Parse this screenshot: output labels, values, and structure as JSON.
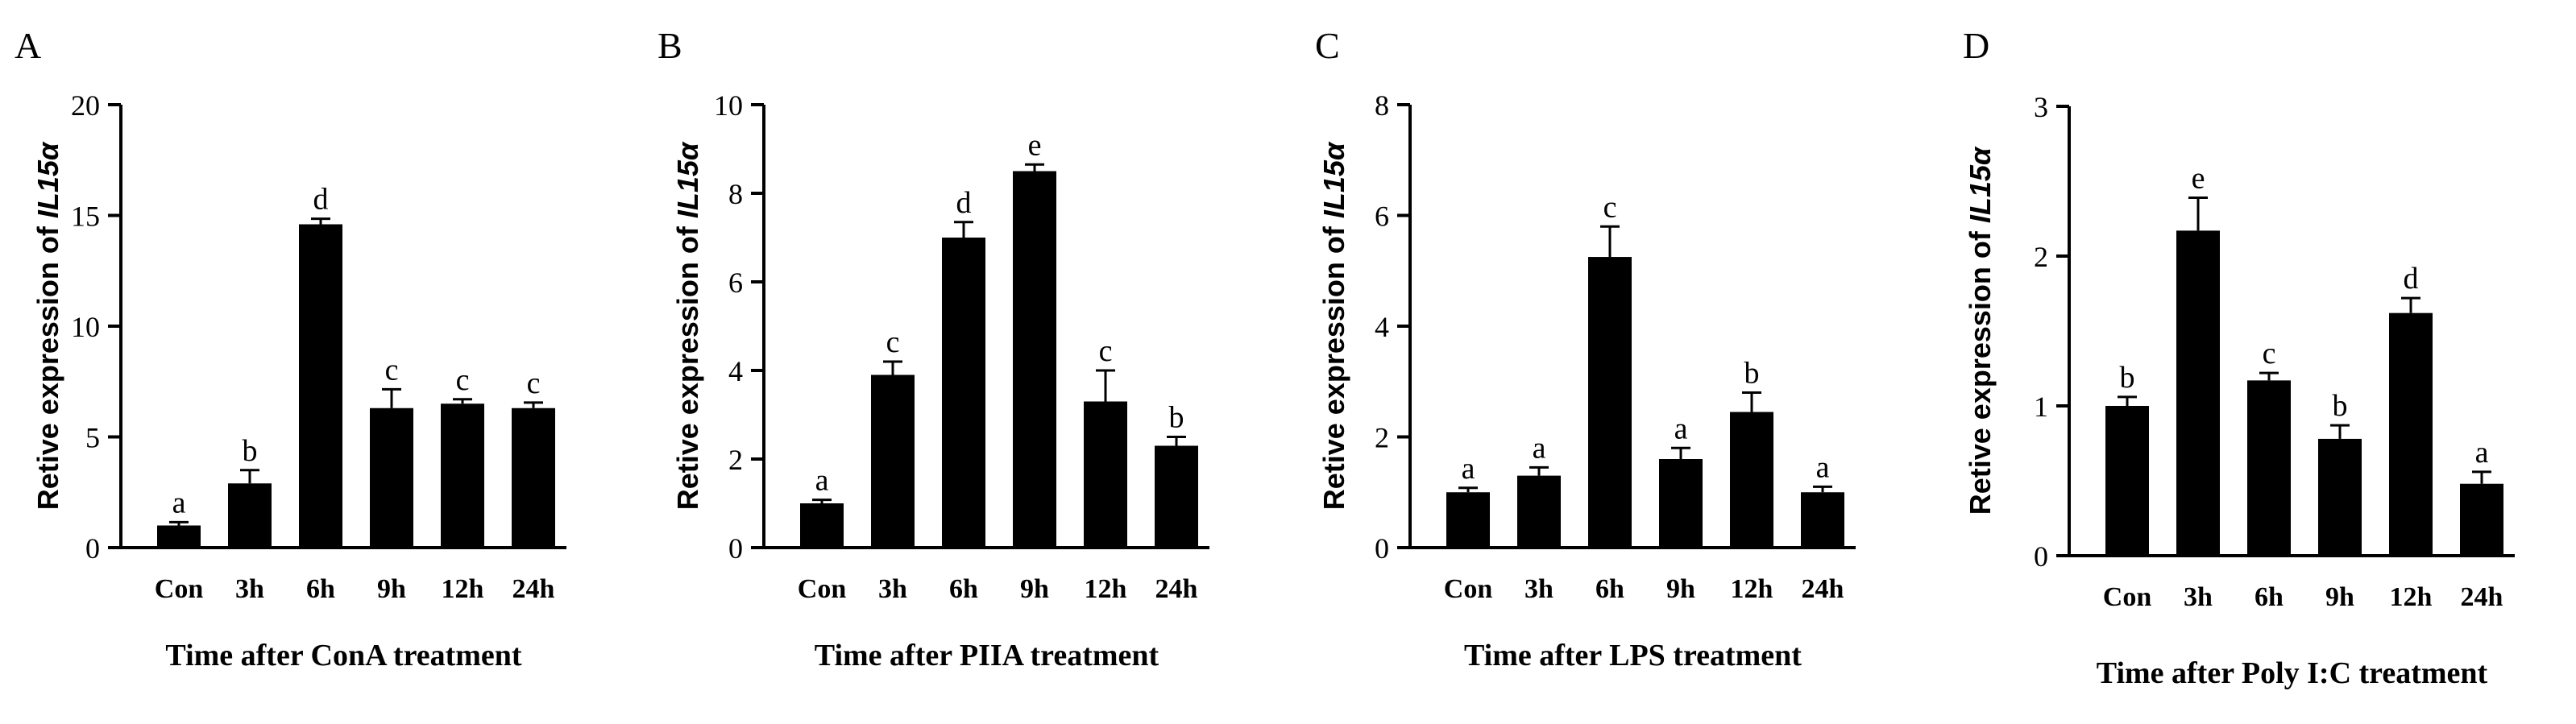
{
  "chart_data": [
    {
      "type": "bar",
      "panel_label": "A",
      "ylabel_prefix": "Retive expression of ",
      "ylabel_gene": "IL15α",
      "xlabel": "Time after ConA treatment",
      "categories": [
        "Con",
        "3h",
        "6h",
        "9h",
        "12h",
        "24h"
      ],
      "values": [
        1.0,
        2.9,
        14.6,
        6.3,
        6.5,
        6.3
      ],
      "errors": [
        0.15,
        0.6,
        0.25,
        0.85,
        0.2,
        0.25
      ],
      "letters": [
        "a",
        "b",
        "d",
        "c",
        "c",
        "c"
      ],
      "ylim": [
        0,
        20
      ],
      "yticks": [
        0,
        5,
        10,
        15,
        20
      ],
      "ytick_labels": [
        "0",
        "5",
        "10",
        "15",
        "20"
      ],
      "bar_color": "#000000"
    },
    {
      "type": "bar",
      "panel_label": "B",
      "ylabel_prefix": "Retive expression of ",
      "ylabel_gene": "IL15α",
      "xlabel": "Time after PIIA treatment",
      "categories": [
        "Con",
        "3h",
        "6h",
        "9h",
        "12h",
        "24h"
      ],
      "values": [
        1.0,
        3.9,
        7.0,
        8.5,
        3.3,
        2.3
      ],
      "errors": [
        0.08,
        0.3,
        0.35,
        0.15,
        0.7,
        0.2
      ],
      "letters": [
        "a",
        "c",
        "d",
        "e",
        "c",
        "b"
      ],
      "ylim": [
        0,
        10
      ],
      "yticks": [
        0,
        2,
        4,
        6,
        8,
        10
      ],
      "ytick_labels": [
        "0",
        "2",
        "4",
        "6",
        "8",
        "10"
      ],
      "bar_color": "#000000"
    },
    {
      "type": "bar",
      "panel_label": "C",
      "ylabel_prefix": "Retive expression of ",
      "ylabel_gene": "IL15α",
      "xlabel": "Time after LPS treatment",
      "categories": [
        "Con",
        "3h",
        "6h",
        "9h",
        "12h",
        "24h"
      ],
      "values": [
        1.0,
        1.3,
        5.25,
        1.6,
        2.45,
        1.0
      ],
      "errors": [
        0.08,
        0.15,
        0.55,
        0.2,
        0.35,
        0.1
      ],
      "letters": [
        "a",
        "a",
        "c",
        "a",
        "b",
        "a"
      ],
      "ylim": [
        0,
        8
      ],
      "yticks": [
        0,
        2,
        4,
        6,
        8
      ],
      "ytick_labels": [
        "0",
        "2",
        "4",
        "6",
        "8"
      ],
      "bar_color": "#000000"
    },
    {
      "type": "bar",
      "panel_label": "D",
      "ylabel_prefix": "Retive expression of ",
      "ylabel_gene": "IL15α",
      "xlabel": "Time after Poly I:C treatment",
      "categories": [
        "Con",
        "3h",
        "6h",
        "9h",
        "12h",
        "24h"
      ],
      "values": [
        1.0,
        2.17,
        1.17,
        0.78,
        1.62,
        0.48
      ],
      "errors": [
        0.06,
        0.22,
        0.05,
        0.09,
        0.1,
        0.08
      ],
      "letters": [
        "b",
        "e",
        "c",
        "b",
        "d",
        "a"
      ],
      "ylim": [
        0,
        3
      ],
      "yticks": [
        0,
        1,
        2,
        3
      ],
      "ytick_labels": [
        "0",
        "1",
        "2",
        "3"
      ],
      "bar_color": "#000000"
    }
  ]
}
